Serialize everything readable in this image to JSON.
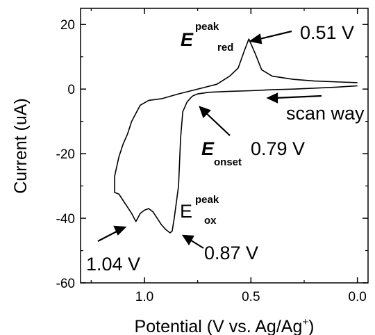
{
  "chart_data": {
    "type": "line",
    "xlabel": "Potential (V vs. Ag/Ag+)",
    "ylabel": "Current (uA)",
    "xlim": [
      1.3,
      -0.05
    ],
    "ylim": [
      -60,
      25
    ],
    "x_reversed": true,
    "x_ticks": [
      {
        "value": 1.0,
        "label": "1.0"
      },
      {
        "value": 0.5,
        "label": "0.5"
      },
      {
        "value": 0.0,
        "label": "0.0"
      }
    ],
    "y_ticks": [
      {
        "value": 20,
        "label": "20"
      },
      {
        "value": 0,
        "label": "0"
      },
      {
        "value": -20,
        "label": "-20"
      },
      {
        "value": -40,
        "label": "-40"
      },
      {
        "value": -60,
        "label": "-60"
      }
    ],
    "grid": false,
    "series": [
      {
        "color": "#000000",
        "x": [
          0.0,
          0.08,
          0.2,
          0.3,
          0.4,
          0.45,
          0.48,
          0.51,
          0.53,
          0.56,
          0.6,
          0.66,
          0.72,
          0.78,
          0.84,
          0.92,
          0.98,
          1.02,
          1.06,
          1.08,
          1.1,
          1.12,
          1.13,
          1.14,
          1.14,
          1.12,
          1.1,
          1.08,
          1.06,
          1.04,
          1.02,
          1.0,
          0.98,
          0.96,
          0.94,
          0.92,
          0.9,
          0.88,
          0.87,
          0.86,
          0.84,
          0.83,
          0.82,
          0.8,
          0.78,
          0.77,
          0.75,
          0.72,
          0.7,
          0.6,
          0.5,
          0.4,
          0.3,
          0.2,
          0.1,
          0.0
        ],
        "y": [
          2.0,
          2.2,
          2.5,
          3.0,
          4.0,
          6.0,
          11.0,
          15.5,
          12.0,
          6.5,
          4.0,
          1.5,
          0.5,
          -0.5,
          -1.5,
          -3.0,
          -3.5,
          -5.0,
          -10.0,
          -14.0,
          -17.0,
          -21.0,
          -24.0,
          -27.0,
          -32.0,
          -32.5,
          -34.5,
          -36.5,
          -38.5,
          -41.0,
          -38.5,
          -37.5,
          -37.0,
          -38.0,
          -40.0,
          -42.0,
          -43.5,
          -44.5,
          -44.0,
          -40.0,
          -30.0,
          -15.0,
          -7.0,
          -4.0,
          -2.5,
          -2.0,
          -1.5,
          -1.2,
          -1.0,
          -0.7,
          -0.5,
          -0.2,
          0.0,
          0.3,
          0.6,
          1.0
        ]
      }
    ],
    "annotations": [
      {
        "id": "ered",
        "main": "E",
        "sup": "peak",
        "sub": "red"
      },
      {
        "id": "ered_val",
        "text": "0.51 V"
      },
      {
        "id": "scan",
        "text": "scan way"
      },
      {
        "id": "eonset",
        "main": "E",
        "sub": "onset"
      },
      {
        "id": "eonset_val",
        "text": "0.79 V"
      },
      {
        "id": "eox",
        "main": "E",
        "sup": "peak",
        "sub": "ox"
      },
      {
        "id": "eox_val",
        "text": "0.87 V"
      },
      {
        "id": "e104_val",
        "text": "1.04 V"
      }
    ]
  }
}
